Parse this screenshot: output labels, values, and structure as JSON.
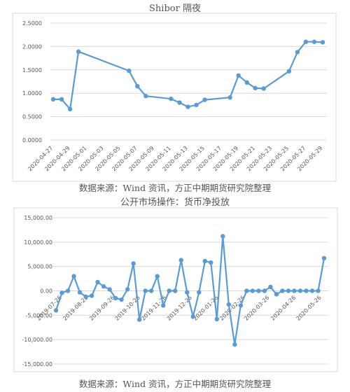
{
  "charts": {
    "top": {
      "title": "Shibor 隔夜",
      "source": "数据来源：Wind 资讯，方正中期期货研究院整理"
    },
    "bottom": {
      "title": "公开市场操作：货币净投放",
      "source": "数据来源：Wind 资讯，方正中期期货研究院整理"
    }
  },
  "colors": {
    "line": "#5b9bd5",
    "grid": "#d9d9d9",
    "text": "#555555"
  },
  "chart_data": [
    {
      "type": "line",
      "title": "Shibor 隔夜",
      "xlabel": "",
      "ylabel": "",
      "ylim": [
        0,
        2.5
      ],
      "ytick_labels": [
        "0.0000",
        "0.5000",
        "1.0000",
        "1.5000",
        "2.0000",
        "2.5000"
      ],
      "xtick_labels": [
        "2020-04-27",
        "2020-04-29",
        "2020-05-01",
        "2020-05-03",
        "2020-05-05",
        "2020-05-07",
        "2020-05-09",
        "2020-05-11",
        "2020-05-13",
        "2020-05-15",
        "2020-05-17",
        "2020-05-19",
        "2020-05-21",
        "2020-05-23",
        "2020-05-25",
        "2020-05-27",
        "2020-05-29"
      ],
      "grid": true,
      "legend": "none",
      "series": [
        {
          "x": [
            "2020-04-27",
            "2020-04-28",
            "2020-04-29",
            "2020-04-30",
            "2020-05-06",
            "2020-05-07",
            "2020-05-08",
            "2020-05-11",
            "2020-05-12",
            "2020-05-13",
            "2020-05-14",
            "2020-05-15",
            "2020-05-18",
            "2020-05-19",
            "2020-05-20",
            "2020-05-21",
            "2020-05-22",
            "2020-05-25",
            "2020-05-26",
            "2020-05-27",
            "2020-05-28",
            "2020-05-29"
          ],
          "values": [
            0.87,
            0.87,
            0.66,
            1.89,
            1.48,
            1.15,
            0.94,
            0.88,
            0.8,
            0.71,
            0.75,
            0.86,
            0.91,
            1.38,
            1.23,
            1.11,
            1.1,
            1.47,
            1.88,
            2.1,
            2.1,
            2.09
          ]
        }
      ]
    },
    {
      "type": "line",
      "title": "公开市场操作：货币净投放",
      "xlabel": "",
      "ylabel": "",
      "ylim": [
        -15000,
        15000
      ],
      "ytick_labels": [
        "-15,000.00",
        "-10,000.00",
        "-5,000.00",
        "0.00",
        "5,000.00",
        "10,000.00",
        "15,000.00"
      ],
      "xtick_labels": [
        "2019-07-26",
        "2019-08-26",
        "2019-09-26",
        "2019-10-26",
        "2019-11-26",
        "2019-12-26",
        "2020-01-26",
        "2020-02-26",
        "2020-03-26",
        "2020-04-26",
        "2020-05-26"
      ],
      "grid": true,
      "legend": "none",
      "series": [
        {
          "x": [
            "2019-07-19",
            "2019-07-26",
            "2019-08-02",
            "2019-08-09",
            "2019-08-16",
            "2019-08-23",
            "2019-08-30",
            "2019-09-06",
            "2019-09-13",
            "2019-09-20",
            "2019-09-27",
            "2019-10-04",
            "2019-10-11",
            "2019-10-18",
            "2019-10-25",
            "2019-11-01",
            "2019-11-08",
            "2019-11-15",
            "2019-11-22",
            "2019-11-29",
            "2019-12-06",
            "2019-12-13",
            "2019-12-20",
            "2019-12-27",
            "2020-01-03",
            "2020-01-10",
            "2020-01-17",
            "2020-01-24",
            "2020-01-31",
            "2020-02-07",
            "2020-02-14",
            "2020-02-21",
            "2020-02-28",
            "2020-03-06",
            "2020-03-13",
            "2020-03-20",
            "2020-03-27",
            "2020-04-03",
            "2020-04-10",
            "2020-04-17",
            "2020-04-24",
            "2020-05-01",
            "2020-05-08",
            "2020-05-15",
            "2020-05-22",
            "2020-05-29"
          ],
          "values": [
            -4000,
            -400,
            0,
            3000,
            -300,
            -1200,
            -1000,
            1800,
            900,
            300,
            -1500,
            -1800,
            300,
            5600,
            -5900,
            0,
            0,
            3000,
            -3000,
            0,
            0,
            6300,
            -300,
            -5300,
            -300,
            6100,
            5800,
            -5800,
            11200,
            -2800,
            -11000,
            -3000,
            0,
            0,
            0,
            0,
            800,
            -700,
            0,
            0,
            0,
            0,
            0,
            0,
            0,
            6700
          ]
        }
      ]
    }
  ]
}
